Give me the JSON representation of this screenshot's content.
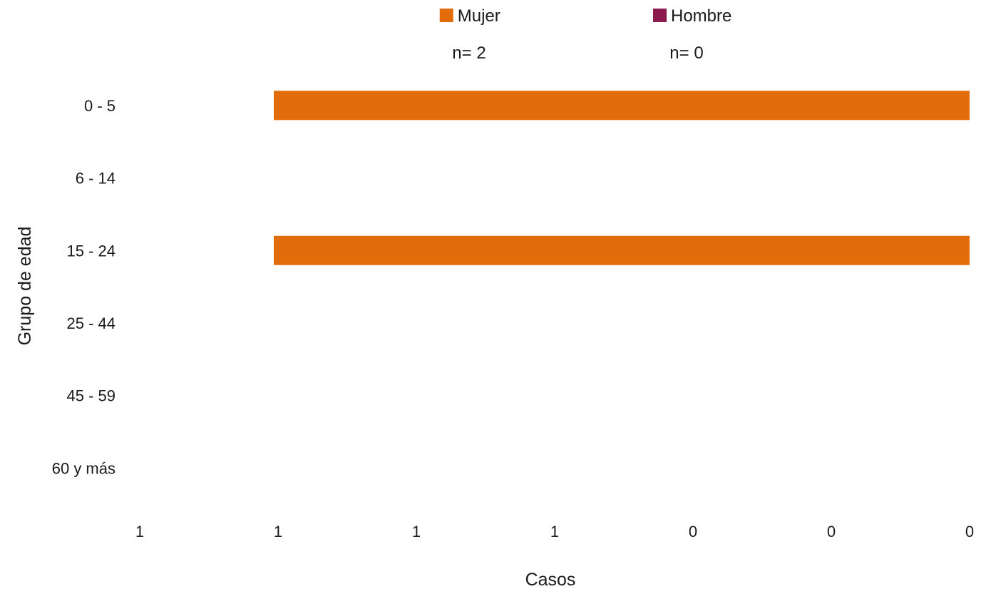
{
  "chart_data": {
    "type": "bar",
    "orientation": "horizontal",
    "title": "",
    "xlabel": "Casos",
    "ylabel": "Grupo de edad",
    "categories": [
      "0 - 5",
      "6 - 14",
      "15 - 24",
      "25 - 44",
      "45 - 59",
      "60 y más"
    ],
    "x_tick_labels": [
      "1",
      "1",
      "1",
      "1",
      "0",
      "0",
      "0"
    ],
    "xlim": [
      -1.2,
      1.2
    ],
    "grid": false,
    "legend_position": "top",
    "series": [
      {
        "name": "Mujer",
        "n_label": "n= 2",
        "color": "#E36C0A",
        "values": [
          -1,
          0,
          -1,
          0,
          0,
          0
        ]
      },
      {
        "name": "Hombre",
        "n_label": "n= 0",
        "color": "#8B1A4F",
        "values": [
          0,
          0,
          0,
          0,
          0,
          0
        ]
      }
    ]
  }
}
